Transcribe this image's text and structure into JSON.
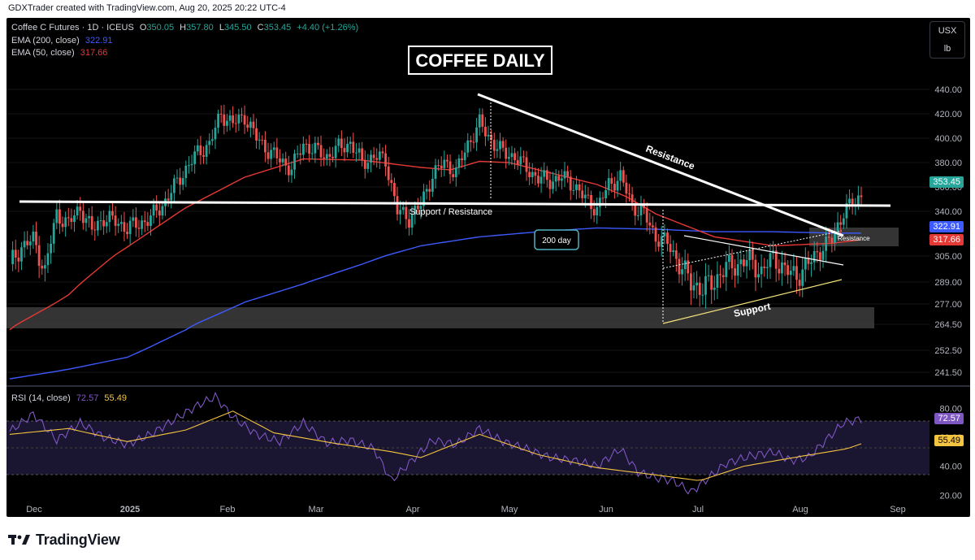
{
  "credit": "GDXTrader created with TradingView.com, Aug 20, 2025 20:22 UTC-4",
  "legend": {
    "symbol": "Coffee C Futures · 1D · ICEUS",
    "o_label": "O",
    "o": "350.05",
    "h_label": "H",
    "h": "357.80",
    "l_label": "L",
    "l": "345.50",
    "c_label": "C",
    "c": "353.45",
    "change": "+4.40 (+1.26%)",
    "ema200_label": "EMA (200, close)",
    "ema200_val": "322.91",
    "ema50_label": "EMA (50, close)",
    "ema50_val": "317.66",
    "rsi_label": "RSI (14, close)",
    "rsi_val": "72.57",
    "rsi_ma_val": "55.49"
  },
  "units": {
    "currency": "USX",
    "unit": "lb"
  },
  "badges": {
    "price": "353.45",
    "ema200": "322.91",
    "ema50": "317.66",
    "rsi": "72.57",
    "rsi_ma": "55.49"
  },
  "annotations": {
    "title": "COFFEE DAILY",
    "resistance": "Resistance",
    "support_resistance": "Support / Resistance",
    "day200": "200 day",
    "resistance_small": "Resistance",
    "support": "Support"
  },
  "colors": {
    "up": "#26a69a",
    "down": "#ef5350",
    "ema200": "#3d5afe",
    "ema50": "#e53935",
    "rsi": "#7e57c2",
    "rsi_ma": "#f5c542",
    "price_badge": "#26a69a"
  },
  "brand": "TradingView",
  "chart_data": {
    "type": "candlestick",
    "title": "COFFEE DAILY",
    "price_axis": {
      "ticks": [
        440,
        420,
        400,
        380,
        360,
        340,
        305,
        289,
        277,
        264.5,
        252.5,
        241.5
      ],
      "labels": [
        "440.00",
        "420.00",
        "400.00",
        "380.00",
        "360.00",
        "340.00",
        "305.00",
        "289.00",
        "277.00",
        "264.50",
        "252.50",
        "241.50"
      ]
    },
    "rsi_axis": {
      "ticks": [
        80,
        60,
        40,
        20
      ],
      "labels": [
        "80.00",
        "60.00",
        "40.00",
        "20.00"
      ],
      "bands": [
        30,
        70
      ]
    },
    "time_axis": {
      "labels": [
        "Dec",
        "2025",
        "Feb",
        "Mar",
        "Apr",
        "May",
        "Jun",
        "Jul",
        "Aug",
        "Sep"
      ]
    },
    "series": [
      {
        "name": "Coffee C Futures",
        "kind": "close",
        "points": [
          [
            0,
            300
          ],
          [
            4,
            312
          ],
          [
            8,
            318
          ],
          [
            12,
            295
          ],
          [
            16,
            338
          ],
          [
            20,
            330
          ],
          [
            24,
            343
          ],
          [
            28,
            325
          ],
          [
            32,
            335
          ],
          [
            36,
            332
          ],
          [
            40,
            327
          ],
          [
            44,
            330
          ],
          [
            48,
            335
          ],
          [
            52,
            345
          ],
          [
            56,
            360
          ],
          [
            60,
            375
          ],
          [
            64,
            388
          ],
          [
            68,
            395
          ],
          [
            72,
            420
          ],
          [
            76,
            412
          ],
          [
            80,
            418
          ],
          [
            84,
            400
          ],
          [
            88,
            390
          ],
          [
            92,
            382
          ],
          [
            96,
            375
          ],
          [
            100,
            395
          ],
          [
            104,
            390
          ],
          [
            108,
            385
          ],
          [
            112,
            392
          ],
          [
            116,
            396
          ],
          [
            120,
            380
          ],
          [
            124,
            385
          ],
          [
            128,
            382
          ],
          [
            132,
            340
          ],
          [
            136,
            335
          ],
          [
            140,
            345
          ],
          [
            144,
            370
          ],
          [
            148,
            380
          ],
          [
            152,
            372
          ],
          [
            156,
            395
          ],
          [
            160,
            412
          ],
          [
            164,
            398
          ],
          [
            168,
            388
          ],
          [
            172,
            385
          ],
          [
            176,
            375
          ],
          [
            180,
            367
          ],
          [
            184,
            365
          ],
          [
            188,
            368
          ],
          [
            192,
            362
          ],
          [
            196,
            350
          ],
          [
            200,
            342
          ],
          [
            204,
            362
          ],
          [
            208,
            368
          ],
          [
            212,
            345
          ],
          [
            216,
            338
          ],
          [
            220,
            320
          ],
          [
            224,
            315
          ],
          [
            228,
            300
          ],
          [
            232,
            289
          ],
          [
            236,
            285
          ],
          [
            240,
            290
          ],
          [
            244,
            298
          ],
          [
            248,
            300
          ],
          [
            252,
            303
          ],
          [
            256,
            295
          ],
          [
            260,
            305
          ],
          [
            264,
            296
          ],
          [
            268,
            293
          ],
          [
            272,
            300
          ],
          [
            276,
            310
          ],
          [
            280,
            318
          ],
          [
            284,
            340
          ],
          [
            288,
            348
          ],
          [
            290,
            353.45
          ]
        ]
      },
      {
        "name": "EMA (200, close)",
        "kind": "ema200",
        "points": [
          [
            0,
            238
          ],
          [
            20,
            243
          ],
          [
            40,
            249
          ],
          [
            60,
            262
          ],
          [
            80,
            278
          ],
          [
            100,
            288
          ],
          [
            120,
            300
          ],
          [
            140,
            313
          ],
          [
            160,
            320
          ],
          [
            180,
            324
          ],
          [
            200,
            327
          ],
          [
            220,
            326
          ],
          [
            240,
            324
          ],
          [
            260,
            324
          ],
          [
            280,
            323
          ],
          [
            290,
            322.91
          ]
        ]
      },
      {
        "name": "EMA (50, close)",
        "kind": "ema50",
        "points": [
          [
            0,
            262
          ],
          [
            20,
            282
          ],
          [
            40,
            312
          ],
          [
            60,
            343
          ],
          [
            80,
            368
          ],
          [
            100,
            383
          ],
          [
            120,
            382
          ],
          [
            140,
            376
          ],
          [
            150,
            374
          ],
          [
            160,
            381
          ],
          [
            170,
            380
          ],
          [
            180,
            374
          ],
          [
            200,
            362
          ],
          [
            210,
            352
          ],
          [
            220,
            338
          ],
          [
            240,
            320
          ],
          [
            260,
            313
          ],
          [
            280,
            315
          ],
          [
            290,
            317.66
          ]
        ]
      },
      {
        "name": "RSI (14, close)",
        "kind": "rsi",
        "points": [
          [
            0,
            64
          ],
          [
            8,
            76
          ],
          [
            16,
            58
          ],
          [
            24,
            70
          ],
          [
            32,
            60
          ],
          [
            40,
            55
          ],
          [
            48,
            62
          ],
          [
            56,
            72
          ],
          [
            64,
            82
          ],
          [
            70,
            88
          ],
          [
            76,
            74
          ],
          [
            84,
            62
          ],
          [
            92,
            57
          ],
          [
            100,
            70
          ],
          [
            108,
            56
          ],
          [
            116,
            58
          ],
          [
            124,
            52
          ],
          [
            130,
            30
          ],
          [
            136,
            42
          ],
          [
            144,
            58
          ],
          [
            152,
            55
          ],
          [
            160,
            66
          ],
          [
            168,
            57
          ],
          [
            176,
            52
          ],
          [
            184,
            46
          ],
          [
            192,
            44
          ],
          [
            200,
            40
          ],
          [
            208,
            52
          ],
          [
            214,
            36
          ],
          [
            220,
            32
          ],
          [
            226,
            30
          ],
          [
            232,
            22
          ],
          [
            238,
            32
          ],
          [
            244,
            42
          ],
          [
            252,
            47
          ],
          [
            260,
            50
          ],
          [
            266,
            44
          ],
          [
            272,
            46
          ],
          [
            278,
            58
          ],
          [
            284,
            70
          ],
          [
            290,
            72.57
          ]
        ]
      },
      {
        "name": "RSI-based MA",
        "kind": "rsi_ma",
        "points": [
          [
            0,
            62
          ],
          [
            20,
            66
          ],
          [
            40,
            57
          ],
          [
            60,
            65
          ],
          [
            76,
            78
          ],
          [
            90,
            63
          ],
          [
            110,
            56
          ],
          [
            130,
            50
          ],
          [
            140,
            46
          ],
          [
            160,
            62
          ],
          [
            180,
            48
          ],
          [
            200,
            39
          ],
          [
            220,
            34
          ],
          [
            235,
            30
          ],
          [
            250,
            40
          ],
          [
            270,
            47
          ],
          [
            285,
            52
          ],
          [
            290,
            55.49
          ]
        ]
      }
    ],
    "ylim": [
      236,
      446
    ],
    "rsi_ylim": [
      14,
      88
    ]
  }
}
